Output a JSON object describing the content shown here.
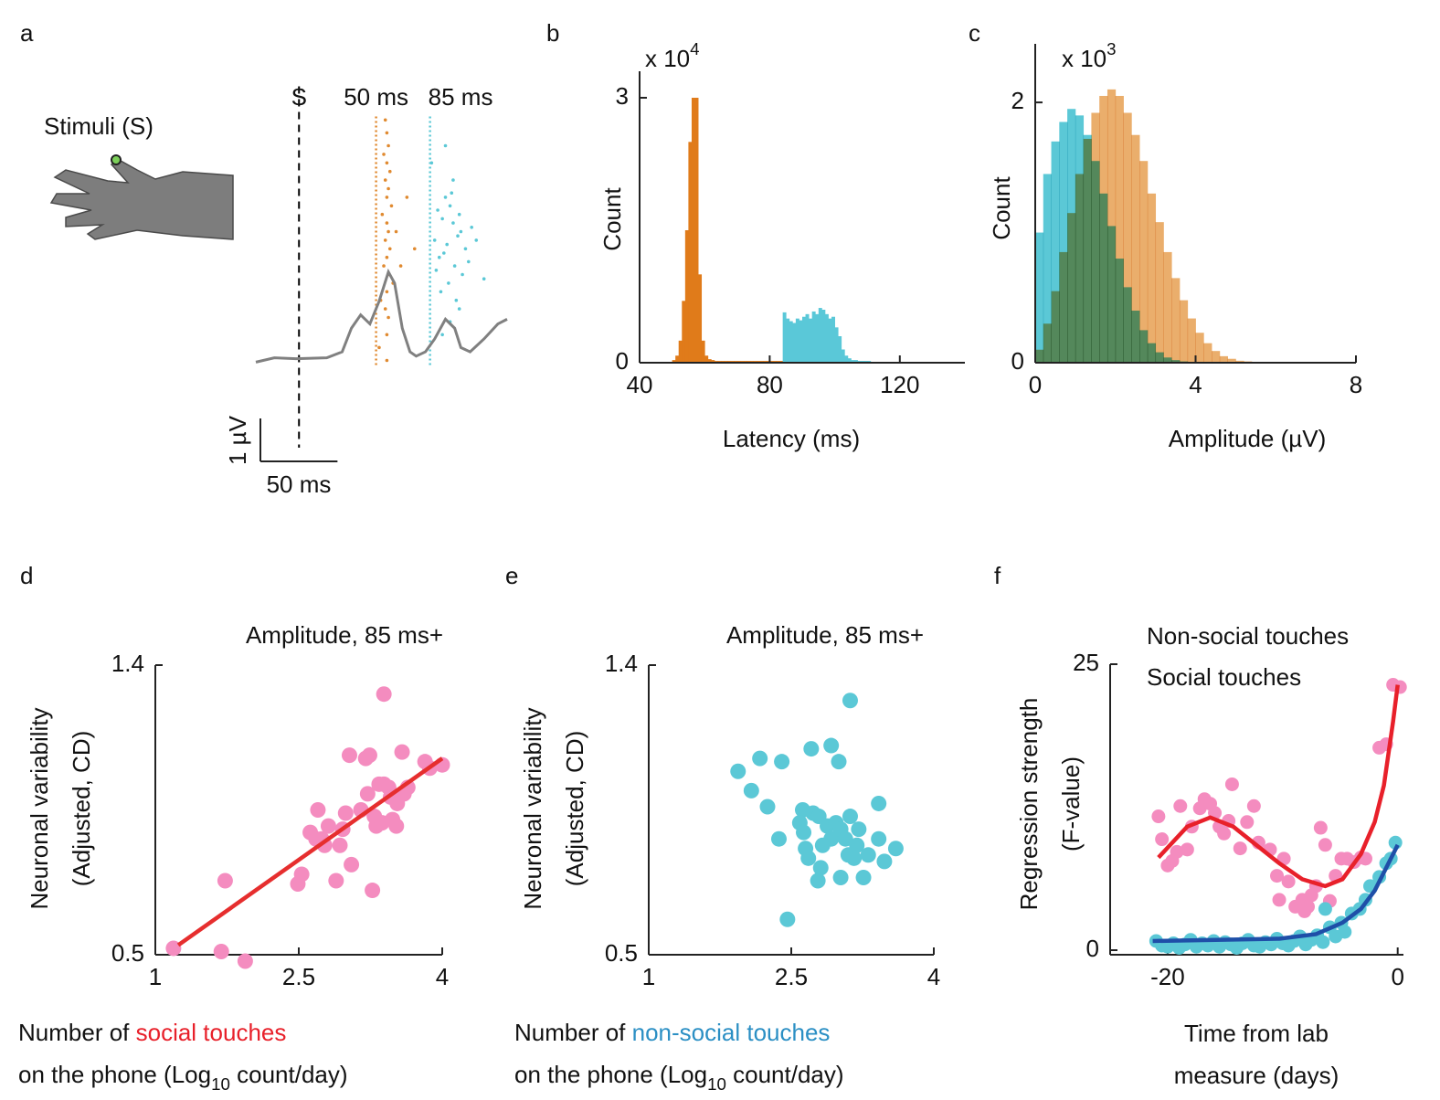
{
  "chart_data": [
    {
      "type": "raster",
      "panel": "a",
      "stimulus_label": "Stimuli (S)",
      "xlim": [
        -28,
        135
      ],
      "ylim": [
        -1.5,
        6
      ],
      "markers": [
        {
          "x": 0,
          "label": "S",
          "style": "dashed",
          "color": "#000000"
        },
        {
          "x": 50,
          "label": "50 ms",
          "style": "dotted",
          "color": "#e08a30"
        },
        {
          "x": 85,
          "label": "85 ms",
          "style": "dotted",
          "color": "#5bc8d6"
        }
      ],
      "raster": [
        {
          "color": "#e08a30",
          "x": [
            56,
            57,
            58,
            55,
            57,
            59,
            56,
            58,
            57,
            60,
            54,
            57,
            58,
            56,
            59,
            57,
            55,
            58,
            61,
            57,
            53,
            56,
            58,
            57,
            63,
            66,
            70,
            75,
            52,
            57
          ],
          "y": [
            5.6,
            5.3,
            5.0,
            4.8,
            4.6,
            4.4,
            4.2,
            4.0,
            3.8,
            3.6,
            3.4,
            3.2,
            3.0,
            2.8,
            2.6,
            2.4,
            2.2,
            2.0,
            1.8,
            1.6,
            1.4,
            1.2,
            1.0,
            0.6,
            3.0,
            2.2,
            3.8,
            2.6,
            0.3,
            0.0
          ]
        },
        {
          "color": "#5bc8d6",
          "x": [
            90,
            95,
            100,
            105,
            88,
            93,
            98,
            103,
            108,
            91,
            96,
            101,
            106,
            89,
            94,
            99,
            104,
            92,
            97,
            102,
            110,
            86,
            112,
            95,
            100,
            115,
            120,
            98,
            93,
            104
          ],
          "y": [
            3.5,
            3.8,
            3.2,
            3.0,
            2.8,
            3.3,
            3.6,
            2.9,
            2.6,
            2.4,
            2.7,
            2.2,
            2.0,
            2.1,
            2.5,
            3.9,
            3.4,
            1.6,
            1.8,
            1.4,
            2.3,
            4.6,
            3.1,
            5.0,
            4.2,
            2.8,
            1.9,
            0.9,
            0.6,
            1.2
          ]
        }
      ],
      "waveform": {
        "color": "#808080",
        "x": [
          -28,
          -16,
          -2,
          18,
          28,
          34,
          40,
          46,
          52,
          58,
          62,
          67,
          72,
          76,
          82,
          88,
          95,
          101,
          105,
          111,
          120,
          129,
          135
        ],
        "y": [
          -0.04,
          0.06,
          0.04,
          0.06,
          0.2,
          0.75,
          1.06,
          0.85,
          1.38,
          2.06,
          1.8,
          0.75,
          0.2,
          0.1,
          0.2,
          0.5,
          0.96,
          0.75,
          0.3,
          0.2,
          0.5,
          0.85,
          0.96
        ]
      },
      "scalebar": {
        "x": 50,
        "x_label": "50 ms",
        "y": 1,
        "y_label": "1 µV"
      }
    },
    {
      "type": "histogram",
      "panel": "b",
      "multiplier": [
        {
          "text": "x 10"
        },
        {
          "text": "4",
          "sup": true
        }
      ],
      "ylabel": "Count",
      "xlabel": "Latency (ms)",
      "xlim": [
        40,
        140
      ],
      "ylim": [
        0,
        3.3
      ],
      "xticks": [
        40,
        80,
        120
      ],
      "yticks": [
        0,
        3
      ],
      "series": [
        {
          "color": "#e07b1a",
          "bins": [
            50,
            51,
            52,
            53,
            54,
            55,
            56,
            57,
            58,
            59,
            60,
            61,
            62,
            63,
            64,
            65,
            66,
            67,
            68,
            69,
            70,
            71,
            72,
            73,
            74,
            75,
            76,
            77,
            78,
            79,
            80,
            81,
            82,
            83,
            84,
            85
          ],
          "counts": [
            0.03,
            0.08,
            0.25,
            0.7,
            1.5,
            2.5,
            3.0,
            3.0,
            1.0,
            0.25,
            0.08,
            0.04,
            0.03,
            0.02,
            0.02,
            0.02,
            0.02,
            0.02,
            0.02,
            0.02,
            0.02,
            0.02,
            0.02,
            0.02,
            0.02,
            0.02,
            0.02,
            0.02,
            0.02,
            0.02,
            0.02,
            0.02,
            0.02,
            0.02,
            0.02
          ]
        },
        {
          "color": "#5ac8d8",
          "bins": [
            84,
            85,
            86,
            87,
            88,
            89,
            90,
            91,
            92,
            93,
            94,
            95,
            96,
            97,
            98,
            99,
            100,
            101,
            102,
            103,
            104,
            105,
            106,
            107,
            108,
            109,
            110,
            111,
            112,
            113,
            114,
            115,
            116,
            117,
            118,
            119,
            120,
            121,
            122,
            123,
            124,
            125,
            126
          ],
          "counts": [
            0.57,
            0.5,
            0.47,
            0.45,
            0.5,
            0.48,
            0.52,
            0.55,
            0.5,
            0.58,
            0.55,
            0.62,
            0.6,
            0.55,
            0.5,
            0.52,
            0.4,
            0.3,
            0.15,
            0.08,
            0.05,
            0.03,
            0.03,
            0.02,
            0.02,
            0.02,
            0.02,
            0.01,
            0.01,
            0.01,
            0.01,
            0.01,
            0.01,
            0.01,
            0.01,
            0.01,
            0.01,
            0.01,
            0.01,
            0.01,
            0.01,
            0.01
          ]
        }
      ]
    },
    {
      "type": "histogram",
      "panel": "c",
      "multiplier": [
        {
          "text": "x 10"
        },
        {
          "text": "3",
          "sup": true
        }
      ],
      "ylabel": "Count",
      "xlabel": "Amplitude (µV)",
      "xlim": [
        0,
        8
      ],
      "ylim": [
        0,
        2.45
      ],
      "xticks": [
        0,
        4,
        8
      ],
      "yticks": [
        0,
        2
      ],
      "blend": "multiply",
      "bins": [
        0,
        0.2,
        0.4,
        0.6,
        0.8,
        1,
        1.2,
        1.4,
        1.6,
        1.8,
        2,
        2.2,
        2.4,
        2.6,
        2.8,
        3,
        3.2,
        3.4,
        3.6,
        3.8,
        4,
        4.2,
        4.4,
        4.6,
        4.8,
        5,
        5.2,
        5.4,
        5.6
      ],
      "series": [
        {
          "color": "#5bc8d6",
          "counts": [
            1.0,
            1.45,
            1.7,
            1.85,
            1.95,
            1.9,
            1.75,
            1.55,
            1.3,
            1.05,
            0.8,
            0.58,
            0.4,
            0.25,
            0.15,
            0.08,
            0.04,
            0.02,
            0.01,
            0,
            0,
            0,
            0,
            0,
            0,
            0,
            0,
            0
          ]
        },
        {
          "color": "#eaae6c",
          "counts": [
            0.1,
            0.3,
            0.55,
            0.85,
            1.15,
            1.45,
            1.72,
            1.92,
            2.05,
            2.1,
            2.05,
            1.92,
            1.75,
            1.55,
            1.3,
            1.08,
            0.85,
            0.65,
            0.48,
            0.34,
            0.23,
            0.15,
            0.09,
            0.05,
            0.03,
            0.015,
            0.01,
            0.005
          ]
        }
      ]
    },
    {
      "type": "scatter",
      "panel": "d",
      "title": "Amplitude, 85 ms+",
      "ylabel": [
        "Neuronal variability",
        "(Adjusted, CD)"
      ],
      "xlabel": [
        [
          {
            "text": "Number of "
          },
          {
            "text": "social touches",
            "color": "#e8202a"
          }
        ],
        [
          {
            "text": "on the phone (Log"
          },
          {
            "text": "10",
            "sub": true
          },
          {
            "text": " count/day)"
          }
        ]
      ],
      "xlim": [
        1,
        4
      ],
      "ylim": [
        0.5,
        1.4
      ],
      "xticks": [
        1,
        2.5,
        4
      ],
      "yticks": [
        0.5,
        1.4
      ],
      "series": [
        {
          "color": "#f48cbf",
          "x": [
            1.19,
            1.73,
            1.69,
            1.94,
            2.49,
            2.53,
            2.7,
            2.74,
            2.62,
            2.68,
            2.77,
            2.89,
            2.93,
            2.96,
            2.99,
            3.05,
            3.03,
            3.15,
            3.2,
            3.24,
            3.22,
            3.27,
            3.29,
            3.31,
            3.37,
            3.39,
            3.34,
            3.39,
            3.44,
            3.46,
            3.48,
            3.52,
            3.53,
            3.58,
            3.6,
            3.64,
            3.82,
            3.87,
            4.0,
            2.81
          ],
          "y": [
            0.52,
            0.73,
            0.51,
            0.48,
            0.72,
            0.75,
            0.95,
            0.86,
            0.88,
            0.86,
            0.84,
            0.73,
            0.84,
            0.89,
            0.94,
            0.78,
            1.12,
            0.95,
            1.11,
            1.12,
            1.0,
            0.7,
            0.93,
            0.9,
            0.91,
            1.31,
            1.03,
            1.03,
            1.02,
            0.99,
            0.92,
            0.9,
            0.97,
            1.13,
            1.0,
            1.02,
            1.1,
            1.08,
            1.09,
            0.9
          ],
          "fit": {
            "color": "#e62e2e",
            "x": [
              1.24,
              4.0
            ],
            "y": [
              0.53,
              1.11
            ]
          }
        }
      ]
    },
    {
      "type": "scatter",
      "panel": "e",
      "title": "Amplitude, 85 ms+",
      "ylabel": [
        "Neuronal variability",
        "(Adjusted, CD)"
      ],
      "xlabel": [
        [
          {
            "text": "Number of "
          },
          {
            "text": "non-social touches",
            "color": "#2b8fc4"
          }
        ],
        [
          {
            "text": "on the phone (Log"
          },
          {
            "text": "10",
            "sub": true
          },
          {
            "text": " count/day)"
          }
        ]
      ],
      "xlim": [
        1,
        4
      ],
      "ylim": [
        0.5,
        1.4
      ],
      "xticks": [
        1,
        2.5,
        4
      ],
      "yticks": [
        0.5,
        1.4
      ],
      "series": [
        {
          "color": "#5bc8d6",
          "x": [
            1.94,
            2.08,
            2.17,
            2.25,
            2.4,
            2.37,
            2.71,
            2.92,
            3.0,
            3.12,
            2.46,
            2.62,
            2.59,
            2.63,
            2.68,
            2.73,
            2.79,
            2.81,
            2.78,
            2.88,
            2.92,
            2.97,
            3.02,
            3.02,
            3.07,
            3.1,
            3.12,
            3.16,
            3.19,
            3.21,
            3.26,
            3.31,
            3.42,
            3.42,
            3.48,
            3.6,
            2.65,
            2.83
          ],
          "y": [
            1.07,
            1.01,
            1.11,
            0.96,
            1.1,
            0.86,
            1.14,
            1.15,
            1.1,
            1.29,
            0.61,
            0.95,
            0.91,
            0.88,
            0.8,
            0.94,
            0.93,
            0.77,
            0.73,
            0.9,
            0.86,
            0.91,
            0.89,
            0.74,
            0.86,
            0.81,
            0.93,
            0.8,
            0.84,
            0.89,
            0.74,
            0.81,
            0.97,
            0.86,
            0.79,
            0.83,
            0.83,
            0.84
          ]
        }
      ]
    },
    {
      "type": "scatter",
      "panel": "f",
      "ylabel": [
        "Regression strength",
        "(F-value)"
      ],
      "xlabel": [
        "Time from lab",
        "measure (days)"
      ],
      "xlim": [
        -25,
        0.5
      ],
      "ylim": [
        -0.4,
        25
      ],
      "xticks": [
        -20,
        0
      ],
      "yticks": [
        0,
        25
      ],
      "series": [
        {
          "name": "Social touches",
          "label_color": "#e8202a",
          "color": "#f48cbf",
          "x": [
            -20.8,
            -20.5,
            -20.0,
            -19.6,
            -19.2,
            -18.9,
            -18.3,
            -17.9,
            -17.2,
            -16.8,
            -16.3,
            -15.9,
            -15.5,
            -15.1,
            -14.4,
            -13.7,
            -12.5,
            -12.1,
            -11.1,
            -10.5,
            -9.9,
            -9.5,
            -8.9,
            -8.3,
            -7.8,
            -7.5,
            -7.1,
            -6.7,
            -6.3,
            -5.9,
            -5.4,
            -4.9,
            -4.4,
            -3.8,
            -3.2,
            -2.8,
            -1.6,
            -1.0,
            -0.4,
            0.2,
            -14.7,
            -13.1,
            -8.1,
            -10.3
          ],
          "y": [
            11.7,
            9.7,
            7.4,
            7.8,
            8.6,
            12.6,
            8.8,
            10.8,
            12.4,
            13.2,
            12.8,
            12.0,
            10.8,
            10.2,
            14.5,
            8.9,
            12.6,
            9.4,
            8.8,
            6.5,
            8.0,
            6.0,
            3.8,
            4.4,
            3.8,
            4.8,
            5.6,
            10.7,
            9.2,
            4.3,
            6.5,
            8.0,
            8.0,
            7.7,
            8.1,
            8.0,
            17.7,
            18.0,
            23.2,
            23.0,
            11.3,
            11.2,
            3.4,
            4.4
          ],
          "fit": {
            "color": "#e8202a",
            "x": [
              -20.8,
              -18.3,
              -16.3,
              -14.3,
              -12.3,
              -10.3,
              -8.3,
              -6.3,
              -4.8,
              -3.2,
              -2.0,
              -1.2,
              -0.4,
              0
            ],
            "y": [
              8.1,
              10.8,
              11.6,
              10.8,
              9.2,
              7.6,
              6.2,
              5.6,
              6.2,
              8.4,
              11.2,
              14.4,
              20.0,
              23.2
            ]
          }
        },
        {
          "name": "Non-social touches",
          "label_color": "#2b8fc4",
          "color": "#5bc8d6",
          "x": [
            -21.0,
            -20.5,
            -20.0,
            -19.5,
            -19.0,
            -18.5,
            -18.0,
            -17.5,
            -17.0,
            -16.5,
            -16.0,
            -15.5,
            -15.0,
            -14.5,
            -14.0,
            -13.5,
            -13.0,
            -12.5,
            -12.0,
            -11.5,
            -11.0,
            -10.5,
            -10.0,
            -9.5,
            -9.0,
            -8.5,
            -8.0,
            -7.5,
            -7.0,
            -6.5,
            -6.3,
            -5.9,
            -5.4,
            -4.9,
            -4.6,
            -4.0,
            -3.3,
            -2.8,
            -2.4,
            -1.6,
            -1.0,
            -0.6,
            -0.2
          ],
          "y": [
            0.8,
            0.4,
            0.3,
            0.6,
            0.2,
            0.5,
            0.9,
            0.3,
            0.6,
            0.4,
            0.8,
            0.3,
            0.7,
            0.5,
            0.2,
            0.6,
            0.9,
            0.4,
            0.3,
            0.7,
            0.5,
            1.0,
            0.6,
            0.4,
            0.8,
            1.2,
            0.5,
            0.9,
            1.3,
            0.7,
            3.6,
            2.0,
            1.2,
            2.4,
            1.6,
            3.2,
            3.6,
            4.4,
            5.6,
            6.4,
            7.6,
            8.0,
            9.4
          ],
          "fit": {
            "color": "#1f4fa8",
            "x": [
              -21.3,
              -10.3,
              -7.1,
              -4.8,
              -3.2,
              -2.0,
              -1.2,
              -0.4,
              0
            ],
            "y": [
              0.8,
              1.0,
              1.4,
              2.4,
              3.6,
              5.2,
              6.8,
              8.4,
              9.2
            ]
          }
        }
      ]
    }
  ]
}
